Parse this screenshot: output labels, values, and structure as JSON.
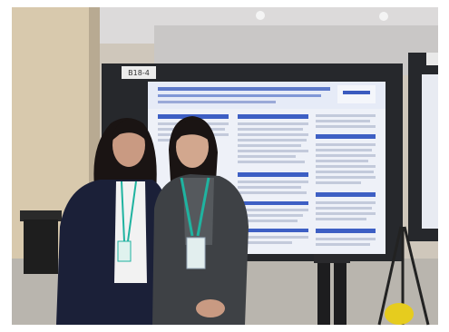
{
  "photo": {
    "board_tag": "B18-4",
    "side_board_tag": "",
    "poster_title_line1": "",
    "poster_title_line2": "",
    "logo_text": "",
    "colors": {
      "frame_border": "#ffffff",
      "wall_left": "#d8c9ad",
      "wall_right": "#c9c7c6",
      "ceiling": "#dcdada",
      "carpet": "#b9b5ae",
      "board_dark": "#26282c",
      "poster_bg": "#eef1f8",
      "poster_header": "#3d5fc4",
      "poster_title_bar": "#e6ebf7",
      "person_left_jacket": "#1b2038",
      "person_right_jacket": "#3e4145",
      "lanyard": "#1fb3a0",
      "hair": "#1a1413",
      "skin": "#c99a82",
      "yellow_object": "#e6cc1e"
    }
  }
}
